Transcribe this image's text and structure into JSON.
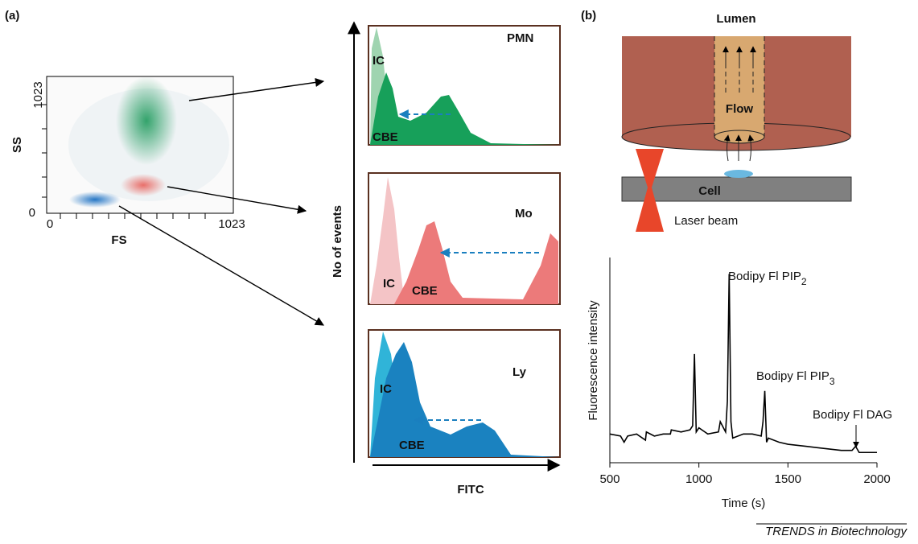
{
  "figure": {
    "panel_a": {
      "label": "(a)",
      "scatter": {
        "y_label": "SS",
        "x_label": "FS",
        "yticks": [
          0,
          1023
        ],
        "xticks": [
          0,
          1023
        ]
      },
      "y_axis_label": "No of events",
      "x_axis_label": "FITC",
      "histograms": [
        {
          "title": "PMN",
          "labels": [
            "IC",
            "CBE"
          ]
        },
        {
          "title": "Mo",
          "labels": [
            "IC",
            "CBE"
          ]
        },
        {
          "title": "Ly",
          "labels": [
            "IC",
            "CBE"
          ]
        }
      ]
    },
    "panel_b": {
      "label": "(b)",
      "lumen": "Lumen",
      "flow": "Flow",
      "cell": "Cell",
      "laser": "Laser beam"
    },
    "footer": "TRENDS in Biotechnology"
  },
  "chart_data": {
    "type": "line",
    "x_label": "Time (s)",
    "y_label": "Fluorescence intensity",
    "xlim": [
      500,
      2000
    ],
    "xticks": [
      500,
      1000,
      1500,
      2000
    ],
    "ylim": [
      0,
      100
    ],
    "color": "#000000",
    "annotations": [
      {
        "text": "Bodipy Fl PIP",
        "sub": "2"
      },
      {
        "text": "Bodipy Fl PIP",
        "sub": "3"
      },
      {
        "text": "Bodipy Fl DAG"
      }
    ],
    "x": [
      500,
      560,
      580,
      600,
      650,
      700,
      705,
      750,
      800,
      840,
      845,
      900,
      950,
      965,
      975,
      985,
      1000,
      1050,
      1110,
      1120,
      1150,
      1160,
      1170,
      1180,
      1190,
      1250,
      1300,
      1350,
      1360,
      1370,
      1380,
      1390,
      1450,
      1500,
      1600,
      1700,
      1800,
      1860,
      1880,
      1900,
      2000
    ],
    "values": [
      14,
      13,
      10,
      13,
      14,
      11,
      15,
      13,
      14,
      14,
      16,
      15,
      16,
      18,
      53,
      15,
      17,
      14,
      15,
      20,
      15,
      30,
      92,
      20,
      12,
      14,
      14,
      13,
      20,
      35,
      10,
      12,
      10,
      9,
      8,
      7,
      6,
      6,
      8,
      5,
      5
    ]
  }
}
